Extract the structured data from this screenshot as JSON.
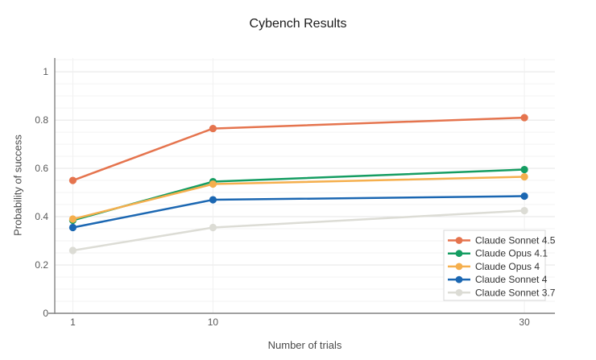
{
  "chart_data": {
    "type": "line",
    "title": "Cybench Results",
    "xlabel": "Number of trials",
    "ylabel": "Probability of success",
    "x": [
      1,
      10,
      30
    ],
    "xtick_labels": [
      "1",
      "10",
      "30"
    ],
    "yticks": [
      0,
      0.2,
      0.4,
      0.6,
      0.8,
      1
    ],
    "ytick_labels": [
      "0",
      "0.2",
      "0.4",
      "0.6",
      "0.8",
      "1"
    ],
    "xlim": [
      -0.16,
      31.96
    ],
    "ylim": [
      0,
      1.057
    ],
    "grid": true,
    "minor_grid_step": 0.05,
    "legend_position": "inside-bottom-right",
    "series": [
      {
        "name": "Claude Sonnet 4.5",
        "color": "#E5744E",
        "values": [
          0.55,
          0.765,
          0.81
        ]
      },
      {
        "name": "Claude Opus 4.1",
        "color": "#159D62",
        "values": [
          0.385,
          0.545,
          0.595
        ]
      },
      {
        "name": "Claude Opus 4",
        "color": "#F5AF4D",
        "values": [
          0.39,
          0.535,
          0.565
        ]
      },
      {
        "name": "Claude Sonnet 4",
        "color": "#1B67B2",
        "values": [
          0.355,
          0.47,
          0.485
        ]
      },
      {
        "name": "Claude Sonnet 3.7",
        "color": "#DCDCD5",
        "values": [
          0.26,
          0.355,
          0.425
        ]
      }
    ]
  }
}
